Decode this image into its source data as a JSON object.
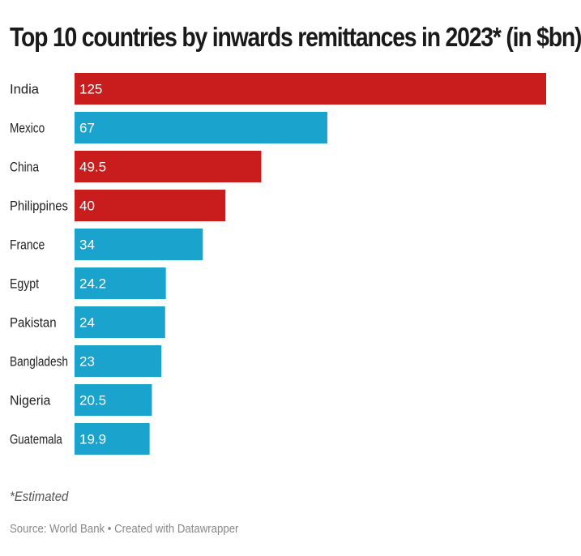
{
  "chart_data": {
    "type": "bar",
    "orientation": "horizontal",
    "title": "Top 10 countries by inwards remittances in 2023* (in $bn)",
    "categories": [
      "India",
      "Mexico",
      "China",
      "Philippines",
      "France",
      "Egypt",
      "Pakistan",
      "Bangladesh",
      "Nigeria",
      "Guatemala"
    ],
    "values": [
      125,
      67,
      49.5,
      40,
      34,
      24.2,
      24,
      23,
      20.5,
      19.9
    ],
    "value_labels": [
      "125",
      "67",
      "49.5",
      "40",
      "34",
      "24.2",
      "24",
      "23",
      "20.5",
      "19.9"
    ],
    "colors": [
      "#c91d1d",
      "#1aa3cc",
      "#c91d1d",
      "#c91d1d",
      "#1aa3cc",
      "#1aa3cc",
      "#1aa3cc",
      "#1aa3cc",
      "#1aa3cc",
      "#1aa3cc"
    ],
    "xlim": [
      0,
      125
    ],
    "xlabel": "",
    "ylabel": "",
    "grid": false,
    "legend": "none"
  },
  "footer": {
    "note": "*Estimated",
    "source": "Source: World Bank • Created with Datawrapper"
  }
}
